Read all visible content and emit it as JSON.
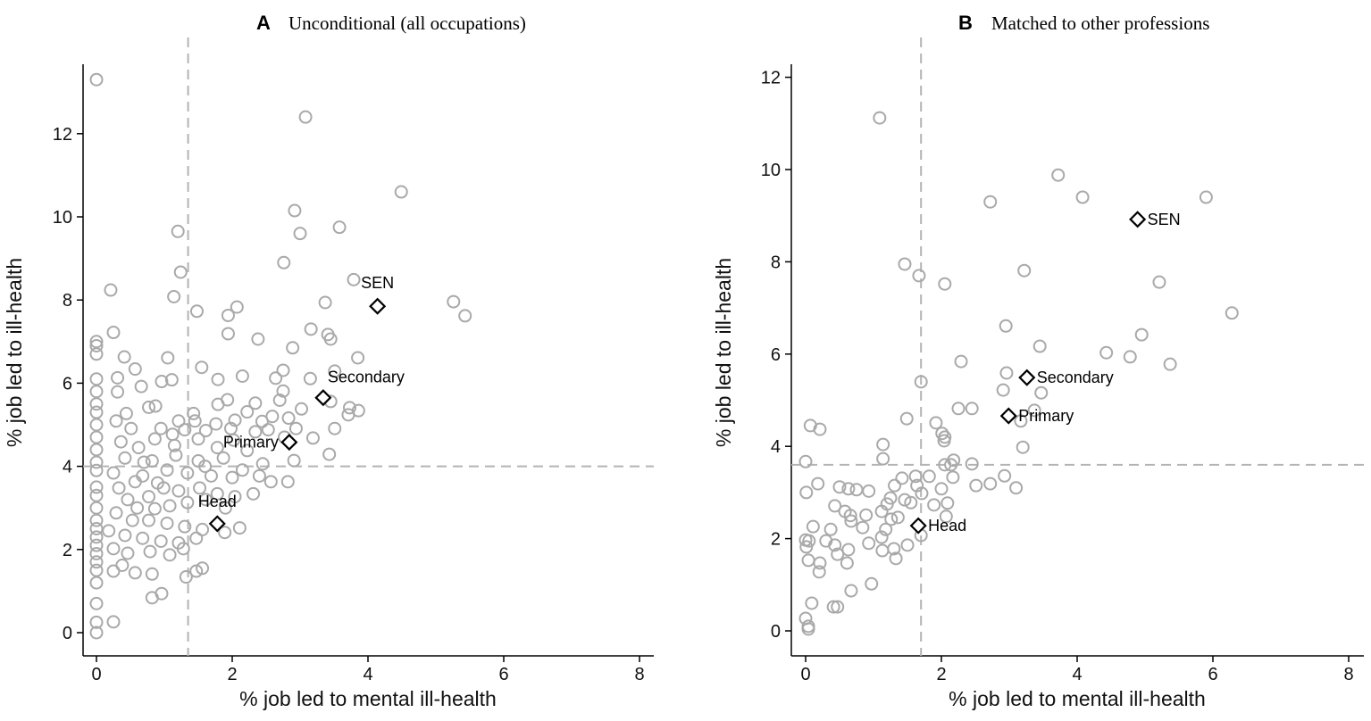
{
  "chart_data": [
    {
      "type": "scatter",
      "panel_letter": "A",
      "title": "Unconditional (all occupations)",
      "xlabel": "% job led to mental ill-health",
      "ylabel": "% job led to ill-health",
      "xlim": [
        0,
        8
      ],
      "ylim": [
        0,
        13.5
      ],
      "xticks": [
        0,
        2,
        4,
        6,
        8
      ],
      "yticks": [
        0,
        2,
        4,
        6,
        8,
        10,
        12
      ],
      "grid": false,
      "reference_lines": {
        "x": 1.35,
        "y": 4.0
      },
      "highlighted": [
        {
          "label": "SEN",
          "x": 4.14,
          "y": 7.85
        },
        {
          "label": "Secondary",
          "x": 3.34,
          "y": 5.65
        },
        {
          "label": "Primary",
          "x": 2.84,
          "y": 4.58
        },
        {
          "label": "Head",
          "x": 1.78,
          "y": 2.62
        }
      ],
      "points": [
        [
          0,
          13.3
        ],
        [
          3.08,
          12.4
        ],
        [
          4.49,
          10.6
        ],
        [
          2.92,
          10.15
        ],
        [
          1.2,
          9.65
        ],
        [
          3.0,
          9.6
        ],
        [
          3.58,
          9.75
        ],
        [
          2.76,
          8.9
        ],
        [
          3.79,
          8.49
        ],
        [
          1.24,
          8.67
        ],
        [
          0.21,
          8.24
        ],
        [
          1.14,
          8.08
        ],
        [
          5.26,
          7.96
        ],
        [
          5.43,
          7.62
        ],
        [
          2.07,
          7.83
        ],
        [
          1.94,
          7.63
        ],
        [
          1.48,
          7.73
        ],
        [
          3.37,
          7.94
        ],
        [
          3.41,
          7.17
        ],
        [
          2.38,
          7.06
        ],
        [
          0.25,
          7.22
        ],
        [
          1.94,
          7.19
        ],
        [
          3.16,
          7.3
        ],
        [
          3.45,
          7.06
        ],
        [
          3.85,
          6.61
        ],
        [
          2.89,
          6.85
        ],
        [
          0.41,
          6.63
        ],
        [
          1.05,
          6.61
        ],
        [
          0.57,
          6.34
        ],
        [
          1.55,
          6.38
        ],
        [
          0.31,
          6.13
        ],
        [
          0.31,
          5.79
        ],
        [
          0.66,
          5.92
        ],
        [
          0.96,
          6.04
        ],
        [
          1.11,
          6.08
        ],
        [
          1.79,
          6.09
        ],
        [
          2.15,
          6.17
        ],
        [
          2.64,
          6.12
        ],
        [
          2.75,
          6.31
        ],
        [
          2.75,
          5.81
        ],
        [
          2.7,
          5.59
        ],
        [
          3.15,
          6.11
        ],
        [
          3.51,
          6.29
        ],
        [
          3.45,
          5.56
        ],
        [
          3.73,
          5.41
        ],
        [
          3.86,
          5.34
        ],
        [
          3.71,
          5.24
        ],
        [
          3.51,
          4.91
        ],
        [
          3.19,
          4.68
        ],
        [
          3.43,
          4.29
        ],
        [
          2.82,
          3.63
        ],
        [
          1.79,
          5.49
        ],
        [
          1.93,
          5.6
        ],
        [
          2.34,
          5.52
        ],
        [
          2.22,
          5.31
        ],
        [
          2.44,
          5.08
        ],
        [
          2.59,
          5.2
        ],
        [
          3.02,
          5.38
        ],
        [
          2.83,
          5.16
        ],
        [
          2.53,
          4.88
        ],
        [
          2.04,
          5.11
        ],
        [
          1.76,
          5.02
        ],
        [
          1.43,
          5.27
        ],
        [
          1.45,
          5.09
        ],
        [
          1.21,
          5.09
        ],
        [
          0.77,
          5.42
        ],
        [
          0.87,
          5.45
        ],
        [
          0.44,
          5.27
        ],
        [
          0.29,
          5.09
        ],
        [
          0.51,
          4.91
        ],
        [
          0.95,
          4.91
        ],
        [
          1.3,
          4.88
        ],
        [
          1.61,
          4.86
        ],
        [
          1.98,
          4.91
        ],
        [
          2.34,
          4.83
        ],
        [
          2.94,
          4.91
        ],
        [
          2.77,
          4.7
        ],
        [
          2.91,
          4.14
        ],
        [
          2.45,
          4.06
        ],
        [
          2.22,
          4.38
        ],
        [
          2.02,
          4.63
        ],
        [
          1.78,
          4.45
        ],
        [
          1.5,
          4.66
        ],
        [
          1.12,
          4.77
        ],
        [
          0.86,
          4.66
        ],
        [
          0.62,
          4.45
        ],
        [
          0.36,
          4.59
        ],
        [
          0.42,
          4.2
        ],
        [
          0.82,
          4.13
        ],
        [
          1.17,
          4.27
        ],
        [
          1.5,
          4.13
        ],
        [
          1.87,
          4.2
        ],
        [
          2.15,
          3.91
        ],
        [
          2.4,
          3.77
        ],
        [
          2.57,
          3.63
        ],
        [
          2.0,
          3.73
        ],
        [
          1.69,
          3.77
        ],
        [
          1.34,
          3.84
        ],
        [
          1.04,
          3.91
        ],
        [
          0.68,
          3.77
        ],
        [
          0.25,
          3.84
        ],
        [
          0.33,
          3.48
        ],
        [
          0.57,
          3.63
        ],
        [
          0.77,
          3.27
        ],
        [
          0.99,
          3.48
        ],
        [
          1.21,
          3.41
        ],
        [
          1.52,
          3.48
        ],
        [
          1.78,
          3.34
        ],
        [
          2.04,
          3.27
        ],
        [
          2.31,
          3.34
        ],
        [
          1.61,
          3.2
        ],
        [
          1.34,
          3.13
        ],
        [
          1.08,
          3.05
        ],
        [
          0.86,
          2.98
        ],
        [
          0.46,
          3.2
        ],
        [
          0.29,
          2.88
        ],
        [
          0.53,
          2.7
        ],
        [
          0.77,
          2.7
        ],
        [
          1.04,
          2.63
        ],
        [
          1.3,
          2.55
        ],
        [
          1.56,
          2.48
        ],
        [
          2.11,
          2.52
        ],
        [
          1.89,
          2.41
        ],
        [
          0.18,
          2.45
        ],
        [
          0.42,
          2.34
        ],
        [
          0.68,
          2.27
        ],
        [
          0.95,
          2.2
        ],
        [
          1.21,
          2.16
        ],
        [
          1.47,
          2.27
        ],
        [
          0.25,
          2.02
        ],
        [
          0.46,
          1.91
        ],
        [
          0.79,
          1.95
        ],
        [
          1.08,
          1.87
        ],
        [
          1.28,
          2.02
        ],
        [
          0.38,
          1.62
        ],
        [
          0.25,
          1.48
        ],
        [
          0.57,
          1.44
        ],
        [
          0.82,
          1.41
        ],
        [
          1.32,
          1.34
        ],
        [
          1.47,
          1.48
        ],
        [
          1.56,
          1.55
        ],
        [
          0.82,
          0.84
        ],
        [
          0.96,
          0.94
        ],
        [
          0.25,
          0.26
        ],
        [
          0.6,
          3.0
        ],
        [
          0.9,
          3.6
        ],
        [
          1.15,
          4.5
        ],
        [
          0.7,
          4.1
        ],
        [
          1.6,
          4.0
        ],
        [
          1.9,
          3.0
        ],
        [
          0,
          0
        ],
        [
          0,
          0.25
        ],
        [
          0,
          0.7
        ],
        [
          0,
          1.2
        ],
        [
          0,
          1.5
        ],
        [
          0,
          1.7
        ],
        [
          0,
          1.9
        ],
        [
          0,
          2.1
        ],
        [
          0,
          2.3
        ],
        [
          0,
          2.5
        ],
        [
          0,
          2.7
        ],
        [
          0,
          3.0
        ],
        [
          0,
          3.3
        ],
        [
          0,
          3.5
        ],
        [
          0,
          3.9
        ],
        [
          0,
          4.1
        ],
        [
          0,
          4.4
        ],
        [
          0,
          4.7
        ],
        [
          0,
          5.0
        ],
        [
          0,
          5.3
        ],
        [
          0,
          5.5
        ],
        [
          0,
          5.8
        ],
        [
          0,
          6.1
        ],
        [
          0,
          6.7
        ],
        [
          0,
          6.9
        ],
        [
          0,
          7.0
        ]
      ]
    },
    {
      "type": "scatter",
      "panel_letter": "B",
      "title": "Matched to other professions",
      "xlabel": "% job led to mental ill-health",
      "ylabel": "% job led to ill-health",
      "xlim": [
        0,
        8
      ],
      "ylim": [
        0,
        12.2
      ],
      "xticks": [
        0,
        2,
        4,
        6,
        8
      ],
      "yticks": [
        0,
        2,
        4,
        6,
        8,
        10,
        12
      ],
      "grid": false,
      "reference_lines": {
        "x": 1.7,
        "y": 3.6
      },
      "highlighted": [
        {
          "label": "SEN",
          "x": 4.89,
          "y": 8.92
        },
        {
          "label": "Secondary",
          "x": 3.26,
          "y": 5.49
        },
        {
          "label": "Primary",
          "x": 2.99,
          "y": 4.66
        },
        {
          "label": "Head",
          "x": 1.66,
          "y": 2.28
        }
      ],
      "points": [
        [
          1.09,
          11.12
        ],
        [
          3.72,
          9.88
        ],
        [
          4.08,
          9.4
        ],
        [
          5.9,
          9.4
        ],
        [
          2.72,
          9.3
        ],
        [
          1.46,
          7.95
        ],
        [
          1.67,
          7.7
        ],
        [
          2.05,
          7.52
        ],
        [
          3.22,
          7.81
        ],
        [
          5.21,
          7.56
        ],
        [
          6.28,
          6.89
        ],
        [
          2.95,
          6.61
        ],
        [
          4.95,
          6.42
        ],
        [
          3.45,
          6.17
        ],
        [
          4.43,
          6.03
        ],
        [
          4.78,
          5.94
        ],
        [
          2.29,
          5.84
        ],
        [
          5.37,
          5.78
        ],
        [
          2.96,
          5.59
        ],
        [
          2.91,
          5.22
        ],
        [
          3.47,
          5.16
        ],
        [
          1.7,
          5.4
        ],
        [
          2.25,
          4.82
        ],
        [
          2.45,
          4.82
        ],
        [
          1.49,
          4.6
        ],
        [
          1.92,
          4.51
        ],
        [
          2.01,
          4.28
        ],
        [
          2.05,
          4.2
        ],
        [
          2.04,
          4.12
        ],
        [
          3.2,
          3.98
        ],
        [
          3.37,
          4.78
        ],
        [
          3.17,
          4.55
        ],
        [
          0.07,
          4.45
        ],
        [
          0.21,
          4.37
        ],
        [
          1.14,
          4.04
        ],
        [
          1.14,
          3.73
        ],
        [
          0,
          3.67
        ],
        [
          2.45,
          3.62
        ],
        [
          2.18,
          3.7
        ],
        [
          2.14,
          3.6
        ],
        [
          2.05,
          3.6
        ],
        [
          2.93,
          3.36
        ],
        [
          3.1,
          3.1
        ],
        [
          2.51,
          3.15
        ],
        [
          2.72,
          3.19
        ],
        [
          0.18,
          3.19
        ],
        [
          0.01,
          3.0
        ],
        [
          0.5,
          3.12
        ],
        [
          0.63,
          3.08
        ],
        [
          0.75,
          3.06
        ],
        [
          0.93,
          3.03
        ],
        [
          1.42,
          3.31
        ],
        [
          1.62,
          3.35
        ],
        [
          1.82,
          3.35
        ],
        [
          1.31,
          3.15
        ],
        [
          1.64,
          3.15
        ],
        [
          1.71,
          2.98
        ],
        [
          2.0,
          3.08
        ],
        [
          2.17,
          3.33
        ],
        [
          1.25,
          2.88
        ],
        [
          1.46,
          2.84
        ],
        [
          1.55,
          2.78
        ],
        [
          1.2,
          2.75
        ],
        [
          1.89,
          2.73
        ],
        [
          2.09,
          2.77
        ],
        [
          1.12,
          2.59
        ],
        [
          1.36,
          2.46
        ],
        [
          1.26,
          2.42
        ],
        [
          2.07,
          2.48
        ],
        [
          0.43,
          2.71
        ],
        [
          0.58,
          2.59
        ],
        [
          0.66,
          2.5
        ],
        [
          0.89,
          2.51
        ],
        [
          0.67,
          2.38
        ],
        [
          0.84,
          2.24
        ],
        [
          0.37,
          2.2
        ],
        [
          0.11,
          2.26
        ],
        [
          1.18,
          2.2
        ],
        [
          1.12,
          2.03
        ],
        [
          1.7,
          2.07
        ],
        [
          0,
          1.97
        ],
        [
          0.05,
          1.95
        ],
        [
          0.01,
          1.82
        ],
        [
          0.3,
          1.95
        ],
        [
          0.43,
          1.86
        ],
        [
          0.63,
          1.76
        ],
        [
          0.93,
          1.9
        ],
        [
          1.13,
          1.74
        ],
        [
          1.3,
          1.78
        ],
        [
          1.5,
          1.86
        ],
        [
          1.33,
          1.57
        ],
        [
          0.04,
          1.53
        ],
        [
          0.21,
          1.47
        ],
        [
          0.2,
          1.28
        ],
        [
          0.47,
          1.66
        ],
        [
          0.61,
          1.47
        ],
        [
          0.67,
          0.87
        ],
        [
          0.97,
          1.02
        ],
        [
          0.09,
          0.6
        ],
        [
          0.41,
          0.52
        ],
        [
          0.47,
          0.52
        ],
        [
          0,
          0.27
        ],
        [
          0.04,
          0.1
        ],
        [
          0.04,
          0.04
        ]
      ]
    }
  ],
  "colors": {
    "points": "#a9a9a9",
    "reference_lines": "#b4b4b4",
    "markers": "#000000"
  }
}
